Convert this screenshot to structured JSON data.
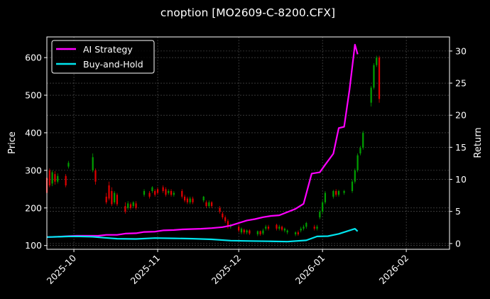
{
  "chart_data": {
    "type": "line",
    "title": "cnoption [MO2609-C-8200.CFX]",
    "xlabel": "",
    "ylabel_left": "Price",
    "ylabel_right": "Return",
    "background_color": "#000000",
    "grid": true,
    "legend_position": "top-left",
    "x_axis": {
      "type": "date",
      "range": [
        "2025-09-21",
        "2026-02-17"
      ],
      "ticks": [
        "2025-10",
        "2025-11",
        "2025-12",
        "2026-01",
        "2026-02"
      ]
    },
    "y_left": {
      "range": [
        90,
        655
      ],
      "ticks": [
        100,
        200,
        300,
        400,
        500,
        600
      ]
    },
    "y_right": {
      "range": [
        -0.9,
        32.2
      ],
      "ticks": [
        0,
        5,
        10,
        15,
        20,
        25,
        30
      ]
    },
    "up_color": "#00a000",
    "down_color": "#e00000",
    "series": [
      {
        "name": "AI Strategy",
        "color": "#ff00ff",
        "axis": "right",
        "points": [
          [
            "2025-09-21",
            1.0
          ],
          [
            "2025-09-25",
            1.05
          ],
          [
            "2025-09-29",
            1.15
          ],
          [
            "2025-10-02",
            1.2
          ],
          [
            "2025-10-06",
            1.2
          ],
          [
            "2025-10-10",
            1.2
          ],
          [
            "2025-10-13",
            1.35
          ],
          [
            "2025-10-17",
            1.35
          ],
          [
            "2025-10-20",
            1.55
          ],
          [
            "2025-10-24",
            1.6
          ],
          [
            "2025-10-27",
            1.8
          ],
          [
            "2025-10-31",
            1.85
          ],
          [
            "2025-11-03",
            2.05
          ],
          [
            "2025-11-07",
            2.1
          ],
          [
            "2025-11-10",
            2.2
          ],
          [
            "2025-11-14",
            2.25
          ],
          [
            "2025-11-17",
            2.3
          ],
          [
            "2025-11-21",
            2.4
          ],
          [
            "2025-11-25",
            2.55
          ],
          [
            "2025-11-28",
            2.8
          ],
          [
            "2025-12-01",
            3.2
          ],
          [
            "2025-12-04",
            3.6
          ],
          [
            "2025-12-07",
            3.8
          ],
          [
            "2025-12-10",
            4.1
          ],
          [
            "2025-12-13",
            4.3
          ],
          [
            "2025-12-16",
            4.4
          ],
          [
            "2025-12-19",
            4.9
          ],
          [
            "2025-12-22",
            5.4
          ],
          [
            "2025-12-25",
            6.2
          ],
          [
            "2025-12-28",
            10.9
          ],
          [
            "2025-12-31",
            11.1
          ],
          [
            "2026-01-02",
            12.3
          ],
          [
            "2026-01-05",
            14.0
          ],
          [
            "2026-01-07",
            18.0
          ],
          [
            "2026-01-09",
            18.2
          ],
          [
            "2026-01-11",
            24.0
          ],
          [
            "2026-01-13",
            31.0
          ],
          [
            "2026-01-14",
            29.5
          ]
        ]
      },
      {
        "name": "Buy-and-Hold",
        "color": "#00e5ee",
        "axis": "right",
        "points": [
          [
            "2025-09-21",
            1.0
          ],
          [
            "2025-09-25",
            1.05
          ],
          [
            "2025-09-29",
            1.1
          ],
          [
            "2025-10-03",
            1.1
          ],
          [
            "2025-10-08",
            1.05
          ],
          [
            "2025-10-12",
            0.9
          ],
          [
            "2025-10-17",
            0.75
          ],
          [
            "2025-10-24",
            0.7
          ],
          [
            "2025-10-31",
            0.85
          ],
          [
            "2025-11-07",
            0.8
          ],
          [
            "2025-11-14",
            0.75
          ],
          [
            "2025-11-21",
            0.65
          ],
          [
            "2025-11-28",
            0.45
          ],
          [
            "2025-12-05",
            0.4
          ],
          [
            "2025-12-12",
            0.35
          ],
          [
            "2025-12-19",
            0.3
          ],
          [
            "2025-12-26",
            0.5
          ],
          [
            "2025-12-30",
            1.1
          ],
          [
            "2026-01-03",
            1.15
          ],
          [
            "2026-01-07",
            1.5
          ],
          [
            "2026-01-10",
            1.9
          ],
          [
            "2026-01-13",
            2.3
          ],
          [
            "2026-01-14",
            1.9
          ]
        ]
      }
    ],
    "candles": [
      [
        "2025-09-21",
        280,
        240,
        290,
        230
      ],
      [
        "2025-09-22",
        300,
        260,
        305,
        255
      ],
      [
        "2025-09-23",
        265,
        295,
        300,
        258
      ],
      [
        "2025-09-24",
        290,
        270,
        298,
        262
      ],
      [
        "2025-09-25",
        270,
        285,
        292,
        265
      ],
      [
        "2025-09-28",
        285,
        260,
        290,
        255
      ],
      [
        "2025-09-29",
        310,
        320,
        325,
        305
      ],
      [
        "2025-10-08",
        300,
        335,
        345,
        295
      ],
      [
        "2025-10-09",
        300,
        270,
        305,
        262
      ],
      [
        "2025-10-13",
        230,
        215,
        240,
        210
      ],
      [
        "2025-10-14",
        260,
        225,
        270,
        220
      ],
      [
        "2025-10-15",
        245,
        210,
        255,
        205
      ],
      [
        "2025-10-16",
        215,
        240,
        245,
        210
      ],
      [
        "2025-10-17",
        235,
        210,
        240,
        205
      ],
      [
        "2025-10-20",
        205,
        190,
        215,
        185
      ],
      [
        "2025-10-21",
        200,
        212,
        218,
        195
      ],
      [
        "2025-10-22",
        210,
        200,
        215,
        195
      ],
      [
        "2025-10-23",
        205,
        215,
        218,
        200
      ],
      [
        "2025-10-24",
        212,
        200,
        218,
        195
      ],
      [
        "2025-10-27",
        235,
        245,
        250,
        230
      ],
      [
        "2025-10-29",
        240,
        230,
        245,
        225
      ],
      [
        "2025-10-30",
        245,
        255,
        258,
        240
      ],
      [
        "2025-10-31",
        245,
        235,
        250,
        230
      ],
      [
        "2025-11-01",
        250,
        240,
        255,
        235
      ],
      [
        "2025-11-03",
        255,
        245,
        260,
        240
      ],
      [
        "2025-11-04",
        250,
        235,
        255,
        230
      ],
      [
        "2025-11-05",
        240,
        245,
        250,
        235
      ],
      [
        "2025-11-06",
        245,
        235,
        250,
        230
      ],
      [
        "2025-11-07",
        235,
        240,
        245,
        230
      ],
      [
        "2025-11-10",
        245,
        230,
        250,
        225
      ],
      [
        "2025-11-11",
        230,
        220,
        235,
        215
      ],
      [
        "2025-11-12",
        225,
        215,
        230,
        210
      ],
      [
        "2025-11-13",
        215,
        225,
        230,
        210
      ],
      [
        "2025-11-14",
        225,
        215,
        230,
        210
      ],
      [
        "2025-11-18",
        220,
        230,
        232,
        215
      ],
      [
        "2025-11-19",
        215,
        205,
        220,
        200
      ],
      [
        "2025-11-20",
        205,
        215,
        220,
        200
      ],
      [
        "2025-11-21",
        215,
        205,
        218,
        200
      ],
      [
        "2025-11-24",
        200,
        190,
        205,
        185
      ],
      [
        "2025-11-25",
        185,
        175,
        190,
        170
      ],
      [
        "2025-11-26",
        175,
        165,
        180,
        160
      ],
      [
        "2025-11-27",
        165,
        150,
        170,
        145
      ],
      [
        "2025-11-28",
        150,
        155,
        158,
        145
      ],
      [
        "2025-12-01",
        150,
        140,
        155,
        135
      ],
      [
        "2025-12-02",
        135,
        145,
        148,
        130
      ],
      [
        "2025-12-03",
        142,
        135,
        145,
        130
      ],
      [
        "2025-12-04",
        135,
        140,
        143,
        130
      ],
      [
        "2025-12-05",
        140,
        132,
        143,
        128
      ],
      [
        "2025-12-08",
        130,
        138,
        140,
        125
      ],
      [
        "2025-12-09",
        138,
        130,
        140,
        126
      ],
      [
        "2025-12-10",
        132,
        140,
        145,
        128
      ],
      [
        "2025-12-11",
        145,
        150,
        155,
        140
      ],
      [
        "2025-12-12",
        150,
        145,
        155,
        140
      ],
      [
        "2025-12-15",
        155,
        145,
        158,
        140
      ],
      [
        "2025-12-16",
        145,
        150,
        155,
        140
      ],
      [
        "2025-12-17",
        150,
        142,
        153,
        138
      ],
      [
        "2025-12-18",
        140,
        145,
        148,
        135
      ],
      [
        "2025-12-19",
        135,
        140,
        143,
        130
      ],
      [
        "2025-12-22",
        130,
        135,
        138,
        125
      ],
      [
        "2025-12-23",
        135,
        130,
        140,
        126
      ],
      [
        "2025-12-24",
        140,
        145,
        150,
        135
      ],
      [
        "2025-12-25",
        145,
        150,
        155,
        140
      ],
      [
        "2025-12-26",
        150,
        160,
        163,
        145
      ],
      [
        "2025-12-29",
        150,
        145,
        155,
        140
      ],
      [
        "2025-12-30",
        145,
        150,
        155,
        140
      ],
      [
        "2025-12-31",
        175,
        190,
        195,
        170
      ],
      [
        "2026-01-01",
        190,
        215,
        220,
        185
      ],
      [
        "2026-01-02",
        215,
        240,
        245,
        210
      ],
      [
        "2026-01-05",
        230,
        245,
        248,
        225
      ],
      [
        "2026-01-06",
        245,
        235,
        250,
        230
      ],
      [
        "2026-01-07",
        235,
        245,
        248,
        230
      ],
      [
        "2026-01-09",
        240,
        245,
        248,
        235
      ],
      [
        "2026-01-12",
        245,
        270,
        275,
        240
      ],
      [
        "2026-01-13",
        270,
        300,
        305,
        265
      ],
      [
        "2026-01-14",
        300,
        340,
        345,
        295
      ],
      [
        "2026-01-15",
        345,
        360,
        365,
        340
      ],
      [
        "2026-01-16",
        360,
        400,
        405,
        355
      ],
      [
        "2026-01-19",
        480,
        520,
        525,
        470
      ],
      [
        "2026-01-20",
        520,
        580,
        585,
        515
      ],
      [
        "2026-01-21",
        580,
        600,
        605,
        575
      ],
      [
        "2026-01-22",
        600,
        490,
        605,
        480
      ]
    ],
    "legend": [
      {
        "label": "AI Strategy",
        "color": "#ff00ff"
      },
      {
        "label": "Buy-and-Hold",
        "color": "#00e5ee"
      }
    ]
  }
}
